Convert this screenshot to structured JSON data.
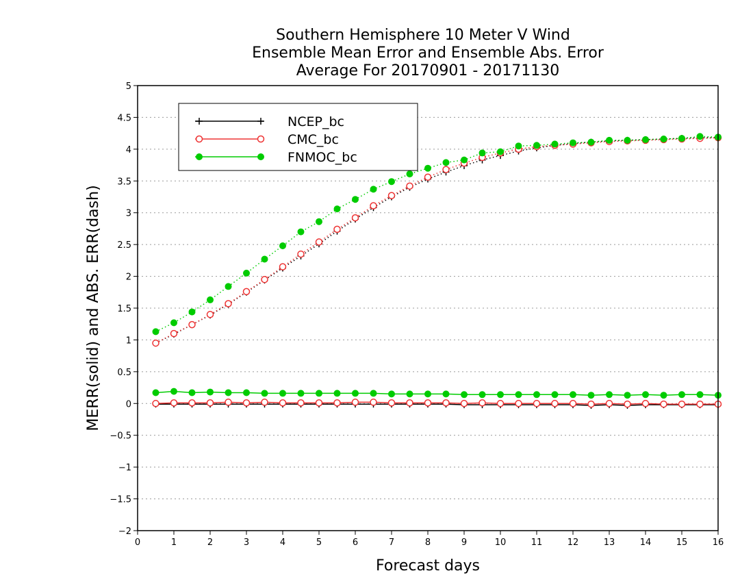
{
  "chart_data": {
    "type": "line",
    "title": "Southern Hemisphere 10 Meter V Wind",
    "subtitle": "Ensemble Mean Error and Ensemble Abs. Error",
    "subtitle2": "Average For 20170901 - 20171130",
    "xlabel": "Forecast days",
    "ylabel": "MERR(solid) and ABS. ERR(dash)",
    "xlim": [
      0,
      16
    ],
    "ylim": [
      -2,
      5
    ],
    "x_ticks": [
      "0",
      "1",
      "2",
      "3",
      "4",
      "5",
      "6",
      "7",
      "8",
      "9",
      "10",
      "11",
      "12",
      "13",
      "14",
      "15",
      "16"
    ],
    "y_ticks": [
      "−2",
      "−1.5",
      "−1",
      "−0.5",
      "0",
      "0.5",
      "1",
      "1.5",
      "2",
      "2.5",
      "3",
      "3.5",
      "4",
      "4.5",
      "5"
    ],
    "grid": "horizontal dotted",
    "legend_position": "top-left",
    "x": [
      0.5,
      1,
      1.5,
      2,
      2.5,
      3,
      3.5,
      4,
      4.5,
      5,
      5.5,
      6,
      6.5,
      7,
      7.5,
      8,
      8.5,
      9,
      9.5,
      10,
      10.5,
      11,
      11.5,
      12,
      12.5,
      13,
      13.5,
      14,
      14.5,
      15,
      15.5,
      16
    ],
    "series": [
      {
        "name": "NCEP_bc",
        "color": "#000000",
        "marker": "plus",
        "merr": [
          -0.01,
          -0.01,
          -0.01,
          -0.01,
          -0.01,
          -0.01,
          -0.01,
          -0.01,
          -0.01,
          -0.01,
          -0.01,
          -0.01,
          -0.01,
          -0.01,
          -0.01,
          -0.01,
          -0.01,
          -0.02,
          -0.02,
          -0.02,
          -0.02,
          -0.02,
          -0.02,
          -0.02,
          -0.03,
          -0.02,
          -0.03,
          -0.02,
          -0.02,
          -0.02,
          -0.02,
          -0.02
        ],
        "abs_err": [
          0.95,
          1.09,
          1.24,
          1.39,
          1.56,
          1.75,
          1.94,
          2.13,
          2.32,
          2.51,
          2.71,
          2.9,
          3.08,
          3.25,
          3.4,
          3.53,
          3.64,
          3.74,
          3.83,
          3.9,
          3.97,
          4.02,
          4.06,
          4.09,
          4.11,
          4.13,
          4.14,
          4.15,
          4.16,
          4.17,
          4.18,
          4.18
        ]
      },
      {
        "name": "CMC_bc",
        "color": "#ee3333",
        "marker": "open-circle",
        "merr": [
          0.0,
          0.01,
          0.01,
          0.01,
          0.02,
          0.01,
          0.02,
          0.01,
          0.01,
          0.01,
          0.01,
          0.02,
          0.02,
          0.01,
          0.01,
          0.01,
          0.01,
          0.0,
          0.01,
          0.0,
          0.0,
          0.0,
          0.0,
          0.0,
          -0.01,
          0.0,
          -0.01,
          0.0,
          -0.01,
          -0.01,
          -0.01,
          -0.01
        ],
        "abs_err": [
          0.95,
          1.1,
          1.24,
          1.4,
          1.57,
          1.76,
          1.95,
          2.15,
          2.35,
          2.54,
          2.74,
          2.92,
          3.11,
          3.27,
          3.42,
          3.56,
          3.68,
          3.78,
          3.87,
          3.94,
          4.0,
          4.04,
          4.06,
          4.08,
          4.1,
          4.12,
          4.13,
          4.14,
          4.15,
          4.16,
          4.17,
          4.18
        ]
      },
      {
        "name": "FNMOC_bc",
        "color": "#00cc00",
        "marker": "filled-circle",
        "merr": [
          0.17,
          0.19,
          0.17,
          0.18,
          0.17,
          0.17,
          0.16,
          0.16,
          0.16,
          0.16,
          0.16,
          0.16,
          0.16,
          0.15,
          0.15,
          0.15,
          0.15,
          0.14,
          0.14,
          0.14,
          0.14,
          0.14,
          0.14,
          0.14,
          0.13,
          0.14,
          0.13,
          0.14,
          0.13,
          0.14,
          0.14,
          0.13
        ],
        "abs_err": [
          1.13,
          1.27,
          1.44,
          1.63,
          1.84,
          2.05,
          2.27,
          2.48,
          2.7,
          2.86,
          3.06,
          3.21,
          3.37,
          3.49,
          3.61,
          3.7,
          3.79,
          3.83,
          3.94,
          3.96,
          4.05,
          4.06,
          4.08,
          4.1,
          4.11,
          4.14,
          4.14,
          4.15,
          4.16,
          4.17,
          4.2,
          4.19
        ]
      }
    ]
  }
}
